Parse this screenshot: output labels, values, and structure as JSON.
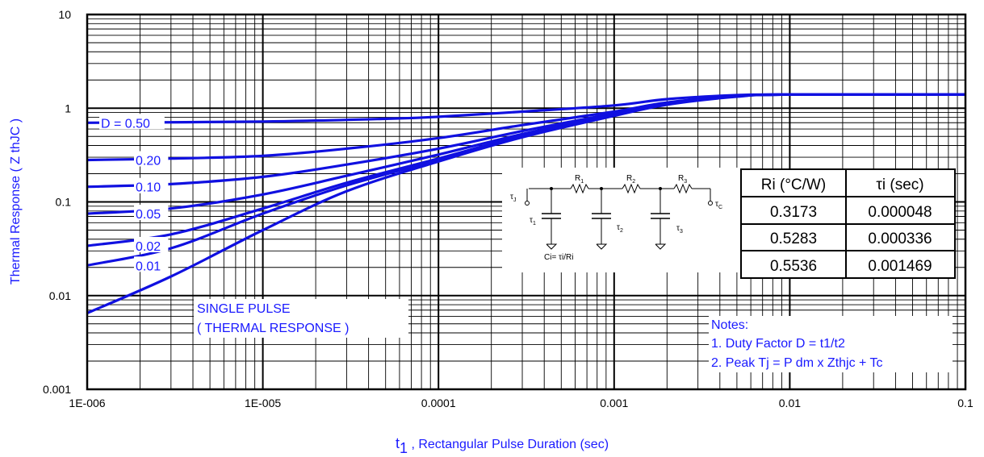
{
  "chart_data": {
    "type": "line",
    "x_scale": "log",
    "y_scale": "log",
    "xlim": [
      1e-06,
      0.1
    ],
    "ylim": [
      0.001,
      10
    ],
    "grid": true,
    "x_ticks": [
      "1E-006",
      "1E-005",
      "0.0001",
      "0.001",
      "0.01",
      "0.1"
    ],
    "y_ticks": [
      "0.001",
      "0.01",
      "0.1",
      "1",
      "10"
    ],
    "xlabel_main": "t",
    "xlabel_sub": "1",
    "xlabel_rest": " , Rectangular Pulse Duration (sec)",
    "ylabel": "Thermal Response ( Z  thJC )",
    "colors": {
      "series": "#1010e0",
      "text": "#1a1aff",
      "grid": "#000000"
    },
    "series": [
      {
        "name": "D = 0.50",
        "label_y": 0.7,
        "points": [
          [
            1e-06,
            0.7
          ],
          [
            1e-05,
            0.72
          ],
          [
            5e-05,
            0.77
          ],
          [
            0.0001,
            0.81
          ],
          [
            0.0003,
            0.92
          ],
          [
            0.001,
            1.07
          ],
          [
            0.002,
            1.25
          ],
          [
            0.005,
            1.38
          ],
          [
            0.01,
            1.4
          ],
          [
            0.1,
            1.4
          ]
        ]
      },
      {
        "name": "0.20",
        "label_y": 0.28,
        "points": [
          [
            1e-06,
            0.28
          ],
          [
            3e-06,
            0.29
          ],
          [
            1e-05,
            0.31
          ],
          [
            3e-05,
            0.37
          ],
          [
            0.0001,
            0.48
          ],
          [
            0.0003,
            0.66
          ],
          [
            0.001,
            0.92
          ],
          [
            0.002,
            1.15
          ],
          [
            0.005,
            1.35
          ],
          [
            0.01,
            1.4
          ],
          [
            0.1,
            1.4
          ]
        ]
      },
      {
        "name": "0.10",
        "label_y": 0.145,
        "points": [
          [
            1e-06,
            0.145
          ],
          [
            3e-06,
            0.155
          ],
          [
            1e-05,
            0.185
          ],
          [
            3e-05,
            0.25
          ],
          [
            0.0001,
            0.37
          ],
          [
            0.0003,
            0.57
          ],
          [
            0.001,
            0.88
          ],
          [
            0.002,
            1.12
          ],
          [
            0.005,
            1.34
          ],
          [
            0.01,
            1.4
          ],
          [
            0.1,
            1.4
          ]
        ]
      },
      {
        "name": "0.05",
        "label_y": 0.075,
        "points": [
          [
            1e-06,
            0.075
          ],
          [
            3e-06,
            0.085
          ],
          [
            1e-05,
            0.12
          ],
          [
            3e-05,
            0.19
          ],
          [
            0.0001,
            0.32
          ],
          [
            0.0003,
            0.53
          ],
          [
            0.001,
            0.86
          ],
          [
            0.002,
            1.11
          ],
          [
            0.005,
            1.34
          ],
          [
            0.01,
            1.4
          ],
          [
            0.1,
            1.4
          ]
        ]
      },
      {
        "name": "0.02",
        "label_y": 0.034,
        "points": [
          [
            1e-06,
            0.034
          ],
          [
            3e-06,
            0.045
          ],
          [
            1e-05,
            0.085
          ],
          [
            3e-05,
            0.16
          ],
          [
            0.0001,
            0.29
          ],
          [
            0.0003,
            0.51
          ],
          [
            0.001,
            0.85
          ],
          [
            0.002,
            1.1
          ],
          [
            0.005,
            1.34
          ],
          [
            0.01,
            1.4
          ],
          [
            0.1,
            1.4
          ]
        ]
      },
      {
        "name": "0.01",
        "label_y": 0.021,
        "points": [
          [
            1e-06,
            0.021
          ],
          [
            3e-06,
            0.032
          ],
          [
            1e-05,
            0.075
          ],
          [
            3e-05,
            0.15
          ],
          [
            0.0001,
            0.28
          ],
          [
            0.0003,
            0.5
          ],
          [
            0.001,
            0.84
          ],
          [
            0.002,
            1.1
          ],
          [
            0.005,
            1.34
          ],
          [
            0.01,
            1.4
          ],
          [
            0.1,
            1.4
          ]
        ]
      },
      {
        "name": "SINGLE PULSE",
        "points": [
          [
            1e-06,
            0.0065
          ],
          [
            3e-06,
            0.016
          ],
          [
            1e-05,
            0.05
          ],
          [
            3e-05,
            0.13
          ],
          [
            0.0001,
            0.27
          ],
          [
            0.0003,
            0.49
          ],
          [
            0.001,
            0.83
          ],
          [
            0.002,
            1.09
          ],
          [
            0.005,
            1.33
          ],
          [
            0.01,
            1.4
          ],
          [
            0.1,
            1.4
          ]
        ]
      }
    ],
    "annotations": {
      "single_pulse_line1": "SINGLE PULSE",
      "single_pulse_line2": "( THERMAL RESPONSE )",
      "notes_title": "Notes:",
      "note_1": "1. Duty Factor D = t1/t2",
      "note_2": "2. Peak Tj = P dm x Zthjc + Tc"
    },
    "table": {
      "header_ri": "Ri (°C/W)",
      "header_tau": "τi (sec)",
      "rows": [
        {
          "ri": "0.3173",
          "tau": "0.000048"
        },
        {
          "ri": "0.5283",
          "tau": "0.000336"
        },
        {
          "ri": "0.5536",
          "tau": "0.001469"
        }
      ]
    },
    "circuit": {
      "tau_j": "τ",
      "tau_j_sub": "J",
      "tau_c": "τ",
      "tau_c_sub": "C",
      "r_labels": [
        "R",
        "R",
        "R"
      ],
      "r_subs": [
        "1",
        "2",
        "3"
      ],
      "cap_tau": [
        "τ",
        "τ",
        "τ"
      ],
      "cap_subs": [
        "1",
        "2",
        "3"
      ],
      "ci_formula": "Ci= τi/Ri"
    }
  }
}
